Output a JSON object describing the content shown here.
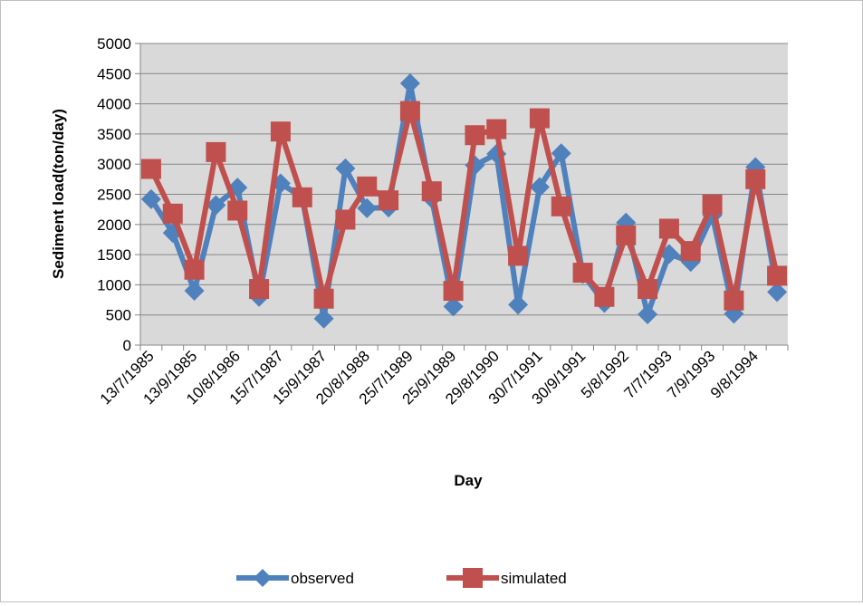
{
  "chart_data": {
    "type": "line",
    "title": "",
    "xlabel": "Day",
    "ylabel": "Sediment load(ton/day)",
    "ylim": [
      0,
      5000
    ],
    "yticks": [
      0,
      500,
      1000,
      1500,
      2000,
      2500,
      3000,
      3500,
      4000,
      4500,
      5000
    ],
    "grid": "horizontal",
    "legend": "bottom",
    "x_tick_labels": [
      "13/7/1985",
      "13/9/1985",
      "10/8/1986",
      "15/7/1987",
      "15/9/1987",
      "20/8/1988",
      "25/7/1989",
      "25/9/1989",
      "29/8/1990",
      "30/7/1991",
      "30/9/1991",
      "5/8/1992",
      "7/7/1993",
      "7/9/1993",
      "9/8/1994"
    ],
    "plot_background": "#d9d9d9",
    "series": [
      {
        "name": "observed",
        "color": "#4f81bd",
        "marker": "diamond",
        "values": [
          2420,
          1860,
          900,
          2320,
          2610,
          800,
          2680,
          2450,
          440,
          2930,
          2270,
          2280,
          4340,
          2430,
          640,
          2980,
          3170,
          670,
          2620,
          3180,
          1180,
          700,
          2030,
          510,
          1510,
          1380,
          2150,
          520,
          2950,
          880
        ]
      },
      {
        "name": "simulated",
        "color": "#c0504d",
        "marker": "square",
        "values": [
          2920,
          2180,
          1250,
          3200,
          2230,
          930,
          3540,
          2450,
          770,
          2080,
          2630,
          2400,
          3880,
          2550,
          900,
          3480,
          3580,
          1480,
          3760,
          2300,
          1200,
          800,
          1820,
          930,
          1930,
          1560,
          2330,
          740,
          2750,
          1150
        ]
      }
    ]
  }
}
